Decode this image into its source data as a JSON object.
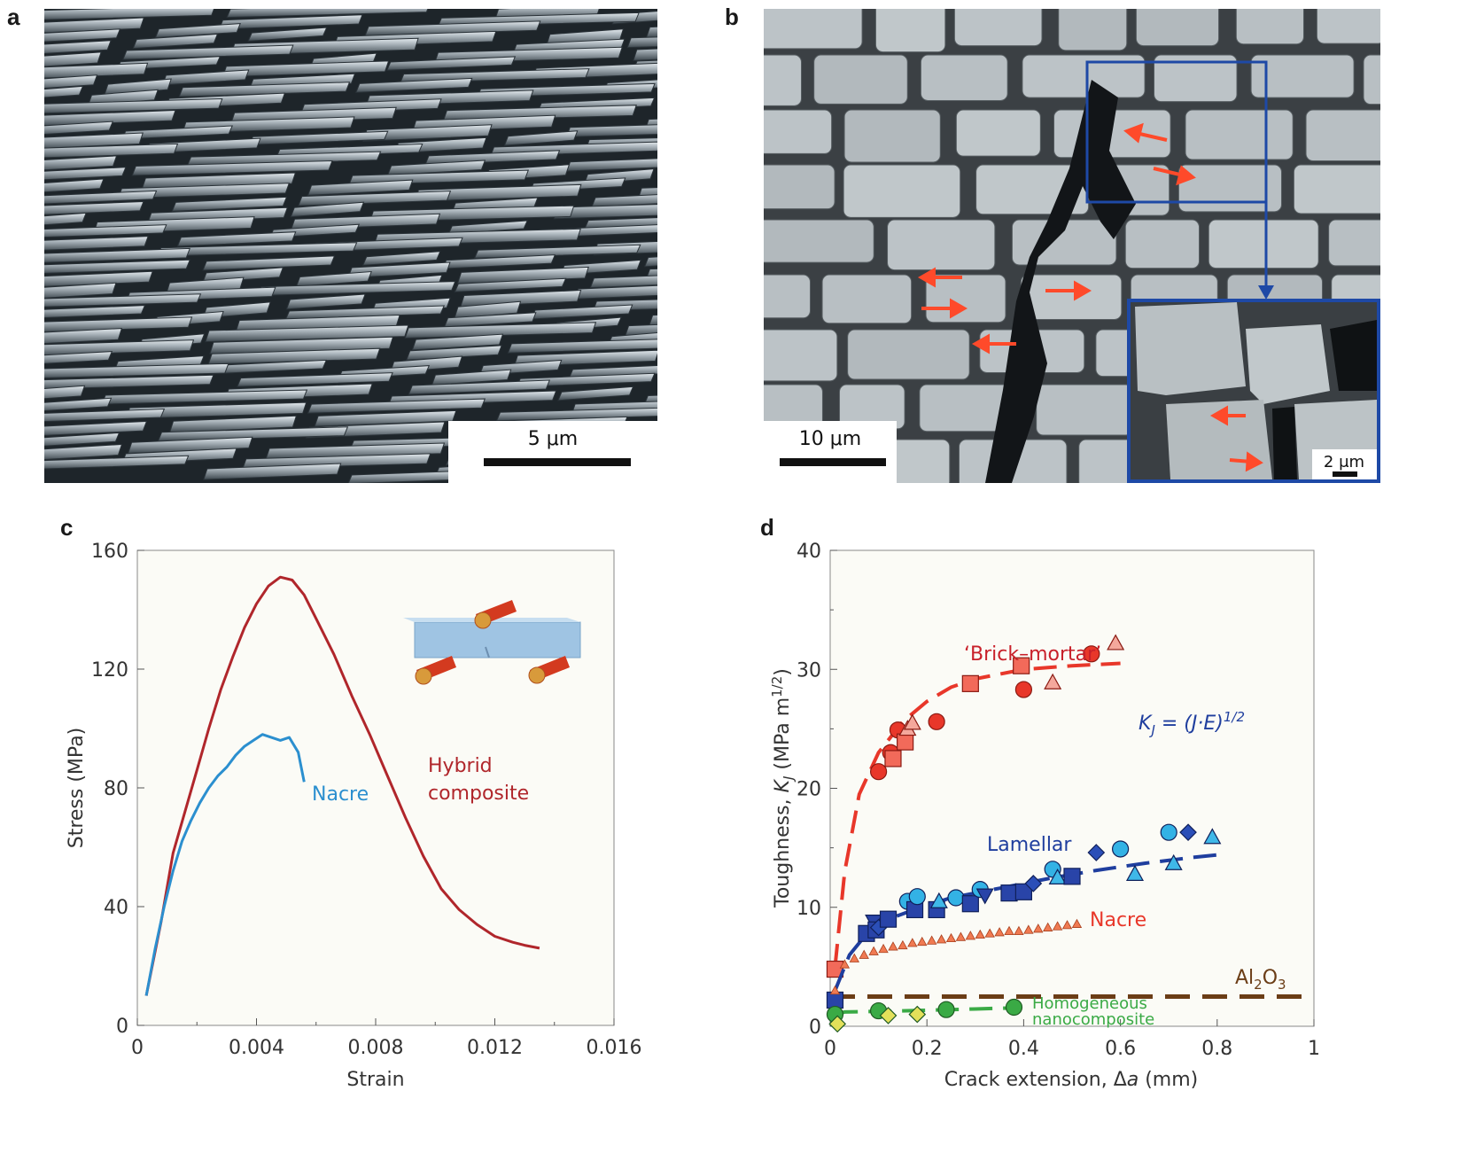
{
  "panels": {
    "a": {
      "letter": "a",
      "scale_label": "5 μm"
    },
    "b": {
      "letter": "b",
      "scale_label": "10 μm",
      "inset_scale_label": "2 μm"
    },
    "c": {
      "letter": "c"
    },
    "d": {
      "letter": "d"
    }
  },
  "colors": {
    "hybrid": "#b0262b",
    "nacre_c": "#2b8fcf",
    "brick": "#e8372a",
    "lamellar": "#1f3e9e",
    "nacre_d": "#e8372a",
    "al2o3": "#6b3d16",
    "homog": "#3aaa45",
    "plot_bg": "#fbfbf6",
    "inset_frame": "#1e49a6",
    "arrow": "#ff4a2a"
  },
  "chart_data": [
    {
      "type": "line",
      "xlabel": "Strain",
      "ylabel": "Stress (MPa)",
      "xlim": [
        0,
        0.016
      ],
      "ylim": [
        0,
        160
      ],
      "xticks": [
        "0",
        "0.004",
        "0.008",
        "0.012",
        "0.016"
      ],
      "yticks": [
        "0",
        "40",
        "80",
        "120",
        "160"
      ],
      "series": [
        {
          "name": "Hybrid composite",
          "label_lines": [
            "Hybrid",
            "composite"
          ],
          "x": [
            0.0003,
            0.0008,
            0.0012,
            0.0016,
            0.002,
            0.0024,
            0.0028,
            0.0032,
            0.0036,
            0.004,
            0.0044,
            0.0048,
            0.0052,
            0.0056,
            0.006,
            0.0066,
            0.0072,
            0.0078,
            0.0084,
            0.009,
            0.0096,
            0.0102,
            0.0108,
            0.0114,
            0.012,
            0.0126,
            0.013,
            0.0135
          ],
          "y": [
            10,
            35,
            58,
            72,
            86,
            100,
            113,
            124,
            134,
            142,
            148,
            151,
            150,
            145,
            137,
            125,
            111,
            98,
            84,
            70,
            57,
            46,
            39,
            34,
            30,
            28,
            27,
            26
          ]
        },
        {
          "name": "Nacre",
          "x": [
            0.0003,
            0.0006,
            0.0009,
            0.0012,
            0.0015,
            0.0018,
            0.0021,
            0.0024,
            0.0027,
            0.003,
            0.0033,
            0.0036,
            0.0039,
            0.0042,
            0.0045,
            0.0048,
            0.0051,
            0.0054,
            0.0056
          ],
          "y": [
            10,
            26,
            40,
            52,
            62,
            69,
            75,
            80,
            84,
            87,
            91,
            94,
            96,
            98,
            97,
            96,
            97,
            92,
            82
          ]
        }
      ],
      "inset": "three-point bending schematic"
    },
    {
      "type": "scatter",
      "xlabel": "Crack extension, Δa (mm)",
      "ylabel": "Toughness, KJ (MPa m1/2)",
      "xlim": [
        0,
        1
      ],
      "ylim": [
        0,
        40
      ],
      "xticks": [
        "0",
        "0.2",
        "0.4",
        "0.6",
        "0.8",
        "1"
      ],
      "yticks": [
        "0",
        "10",
        "20",
        "30",
        "40"
      ],
      "equation": "KJ = (J·E)1/2",
      "al2o3_label": "Al2O3",
      "al2o3_level": 2.5,
      "series": [
        {
          "name": "‘Brick–mortar’",
          "fit": {
            "x": [
              0.01,
              0.03,
              0.06,
              0.1,
              0.15,
              0.2,
              0.25,
              0.3,
              0.4,
              0.5,
              0.6
            ],
            "y": [
              5,
              13,
              19.5,
              23,
              25.6,
              27.3,
              28.5,
              29.2,
              30,
              30.3,
              30.5
            ]
          },
          "points": [
            {
              "shape": "square",
              "x": 0.01,
              "y": 4.8
            },
            {
              "shape": "circle",
              "x": 0.1,
              "y": 21.4
            },
            {
              "shape": "circle",
              "x": 0.125,
              "y": 23
            },
            {
              "shape": "square",
              "x": 0.13,
              "y": 22.5
            },
            {
              "shape": "circle",
              "x": 0.14,
              "y": 24.9
            },
            {
              "shape": "square",
              "x": 0.155,
              "y": 23.9
            },
            {
              "shape": "triangle",
              "x": 0.16,
              "y": 25
            },
            {
              "shape": "triangle",
              "x": 0.17,
              "y": 25.5
            },
            {
              "shape": "circle",
              "x": 0.22,
              "y": 25.6
            },
            {
              "shape": "square",
              "x": 0.29,
              "y": 28.8
            },
            {
              "shape": "circle",
              "x": 0.4,
              "y": 28.3
            },
            {
              "shape": "square",
              "x": 0.395,
              "y": 30.3
            },
            {
              "shape": "triangle",
              "x": 0.46,
              "y": 28.9
            },
            {
              "shape": "circle",
              "x": 0.54,
              "y": 31.3
            },
            {
              "shape": "triangle",
              "x": 0.59,
              "y": 32.2
            }
          ]
        },
        {
          "name": "Lamellar",
          "fit": {
            "x": [
              0.01,
              0.04,
              0.08,
              0.12,
              0.18,
              0.25,
              0.35,
              0.45,
              0.55,
              0.65,
              0.75,
              0.8
            ],
            "y": [
              3,
              6,
              8,
              9,
              9.9,
              10.8,
              11.6,
              12.4,
              13.1,
              13.7,
              14.2,
              14.4
            ]
          },
          "points": [
            {
              "shape": "square",
              "x": 0.01,
              "y": 2.2
            },
            {
              "shape": "square",
              "x": 0.075,
              "y": 7.8
            },
            {
              "shape": "tri_down",
              "x": 0.09,
              "y": 8.8
            },
            {
              "shape": "square",
              "x": 0.095,
              "y": 8.1
            },
            {
              "shape": "diamond",
              "x": 0.1,
              "y": 8.3
            },
            {
              "shape": "square",
              "x": 0.12,
              "y": 9
            },
            {
              "shape": "circle",
              "x": 0.16,
              "y": 10.5
            },
            {
              "shape": "square",
              "x": 0.175,
              "y": 9.8
            },
            {
              "shape": "circle",
              "x": 0.18,
              "y": 10.9
            },
            {
              "shape": "square",
              "x": 0.22,
              "y": 9.8
            },
            {
              "shape": "triangle",
              "x": 0.225,
              "y": 10.5
            },
            {
              "shape": "circle",
              "x": 0.26,
              "y": 10.8
            },
            {
              "shape": "square",
              "x": 0.29,
              "y": 10.3
            },
            {
              "shape": "circle",
              "x": 0.31,
              "y": 11.5
            },
            {
              "shape": "tri_down",
              "x": 0.32,
              "y": 11
            },
            {
              "shape": "square",
              "x": 0.37,
              "y": 11.2
            },
            {
              "shape": "square",
              "x": 0.4,
              "y": 11.3
            },
            {
              "shape": "diamond",
              "x": 0.42,
              "y": 12
            },
            {
              "shape": "circle",
              "x": 0.46,
              "y": 13.2
            },
            {
              "shape": "triangle",
              "x": 0.47,
              "y": 12.5
            },
            {
              "shape": "square",
              "x": 0.5,
              "y": 12.6
            },
            {
              "shape": "diamond",
              "x": 0.55,
              "y": 14.6
            },
            {
              "shape": "circle",
              "x": 0.6,
              "y": 14.9
            },
            {
              "shape": "triangle",
              "x": 0.63,
              "y": 12.8
            },
            {
              "shape": "circle",
              "x": 0.7,
              "y": 16.3
            },
            {
              "shape": "triangle",
              "x": 0.71,
              "y": 13.7
            },
            {
              "shape": "diamond",
              "x": 0.74,
              "y": 16.3
            },
            {
              "shape": "triangle",
              "x": 0.79,
              "y": 15.9
            }
          ]
        },
        {
          "name": "Nacre",
          "x": [
            0.01,
            0.03,
            0.05,
            0.07,
            0.09,
            0.11,
            0.13,
            0.15,
            0.17,
            0.19,
            0.21,
            0.23,
            0.25,
            0.27,
            0.29,
            0.31,
            0.33,
            0.35,
            0.37,
            0.39,
            0.41,
            0.43,
            0.45,
            0.47,
            0.49,
            0.51
          ],
          "y": [
            3,
            5.2,
            5.7,
            6,
            6.3,
            6.5,
            6.7,
            6.8,
            7,
            7.1,
            7.2,
            7.3,
            7.4,
            7.5,
            7.6,
            7.7,
            7.8,
            7.9,
            8,
            8,
            8.1,
            8.2,
            8.3,
            8.4,
            8.5,
            8.6
          ]
        },
        {
          "name": "Homogeneous nanocomposite",
          "label_lines": [
            "Homogeneous",
            "nanocomposite"
          ],
          "fit": {
            "x": [
              0.01,
              0.03,
              0.1,
              0.2,
              0.3,
              0.38
            ],
            "y": [
              1,
              1.2,
              1.25,
              1.35,
              1.45,
              1.55
            ]
          },
          "points": [
            {
              "shape": "circle",
              "x": 0.01,
              "y": 1
            },
            {
              "shape": "diamond",
              "x": 0.015,
              "y": 0.2
            },
            {
              "shape": "circle",
              "x": 0.1,
              "y": 1.3
            },
            {
              "shape": "diamond",
              "x": 0.12,
              "y": 0.9
            },
            {
              "shape": "diamond",
              "x": 0.18,
              "y": 1
            },
            {
              "shape": "circle",
              "x": 0.24,
              "y": 1.4
            },
            {
              "shape": "circle",
              "x": 0.38,
              "y": 1.6
            }
          ]
        }
      ]
    }
  ]
}
